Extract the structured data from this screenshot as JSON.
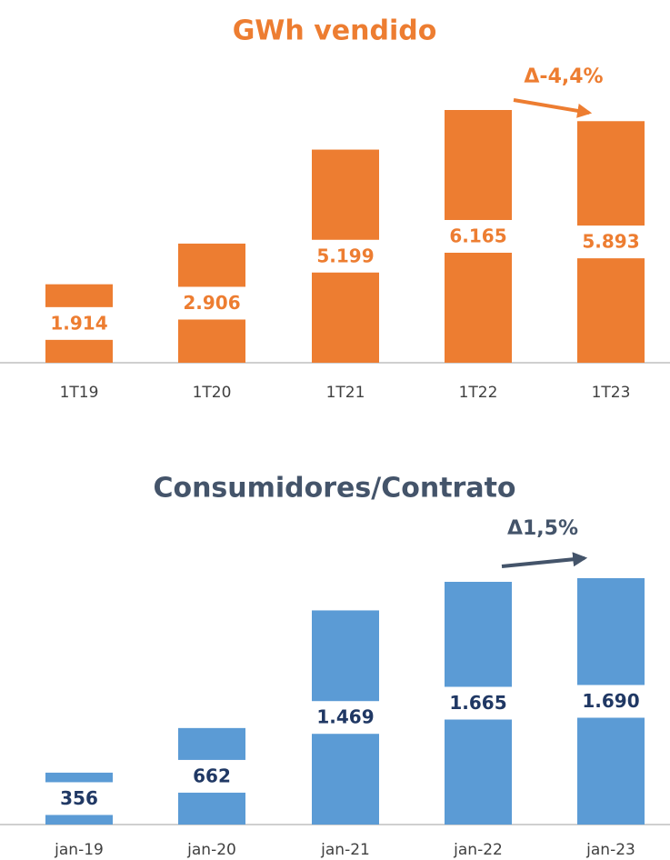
{
  "chart_data": [
    {
      "type": "bar",
      "title": "GWh vendido",
      "annotation": "Δ-4,4%",
      "categories": [
        "1T19",
        "1T20",
        "1T21",
        "1T22",
        "1T23"
      ],
      "values": [
        1914,
        2906,
        5199,
        6165,
        5893
      ],
      "value_labels": [
        "1.914",
        "2.906",
        "5.199",
        "6.165",
        "5.893"
      ],
      "color": "#ED7D31"
    },
    {
      "type": "bar",
      "title": "Consumidores/Contrato",
      "annotation": "Δ1,5%",
      "categories": [
        "jan-19",
        "jan-20",
        "jan-21",
        "jan-22",
        "jan-23"
      ],
      "values": [
        356,
        662,
        1469,
        1665,
        1690
      ],
      "value_labels": [
        "356",
        "662",
        "1.469",
        "1.665",
        "1.690"
      ],
      "color": "#5B9BD5"
    }
  ]
}
